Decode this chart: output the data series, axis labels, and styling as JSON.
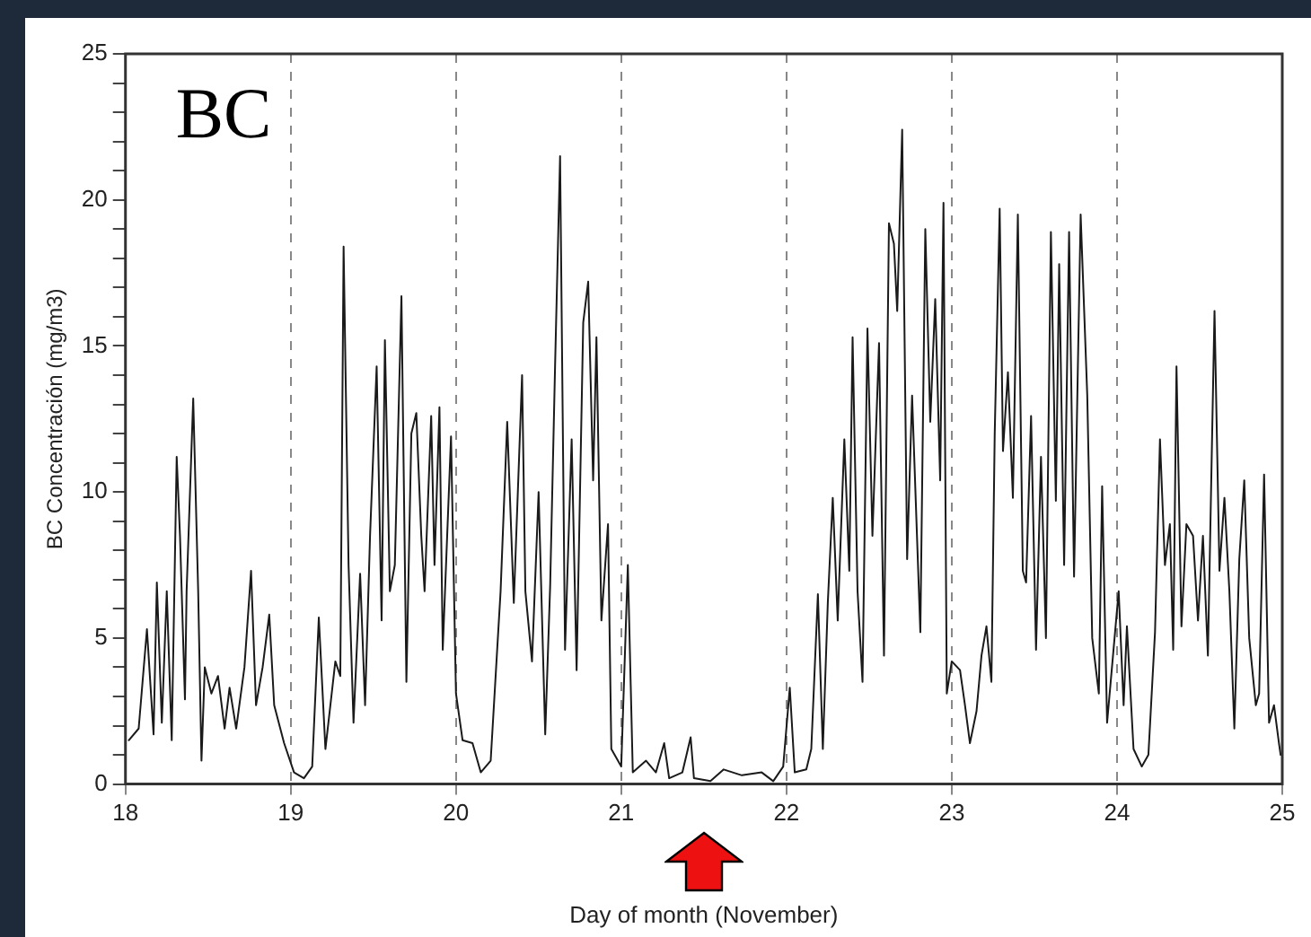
{
  "chart_data": {
    "type": "line",
    "xlabel": "Day of month (November)",
    "ylabel": "BC Concentración (mg/m3)",
    "annotations": [
      "BC"
    ],
    "x": [
      18.02,
      18.08,
      18.13,
      18.17,
      18.19,
      18.22,
      18.25,
      18.28,
      18.31,
      18.33,
      18.36,
      18.37,
      18.41,
      18.44,
      18.46,
      18.48,
      18.52,
      18.56,
      18.6,
      18.63,
      18.67,
      18.72,
      18.76,
      18.79,
      18.83,
      18.87,
      18.9,
      18.96,
      19.02,
      19.08,
      19.13,
      19.17,
      19.21,
      19.27,
      19.3,
      19.32,
      19.35,
      19.38,
      19.42,
      19.45,
      19.48,
      19.52,
      19.55,
      19.57,
      19.6,
      19.63,
      19.67,
      19.7,
      19.73,
      19.76,
      19.79,
      19.81,
      19.85,
      19.87,
      19.9,
      19.92,
      19.97,
      20.0,
      20.04,
      20.1,
      20.15,
      20.21,
      20.27,
      20.31,
      20.35,
      20.4,
      20.42,
      20.46,
      20.5,
      20.54,
      20.57,
      20.6,
      20.63,
      20.66,
      20.7,
      20.73,
      20.77,
      20.8,
      20.83,
      20.85,
      20.88,
      20.92,
      20.94,
      21.0,
      21.04,
      21.07,
      21.15,
      21.21,
      21.26,
      21.29,
      21.37,
      21.42,
      21.44,
      21.54,
      21.62,
      21.73,
      21.85,
      21.92,
      21.98,
      22.02,
      22.05,
      22.12,
      22.15,
      22.19,
      22.22,
      22.25,
      22.28,
      22.31,
      22.35,
      22.38,
      22.4,
      22.43,
      22.46,
      22.49,
      22.52,
      22.56,
      22.59,
      22.62,
      22.65,
      22.67,
      22.7,
      22.73,
      22.76,
      22.81,
      22.84,
      22.87,
      22.9,
      22.93,
      22.95,
      22.97,
      23.0,
      23.05,
      23.08,
      23.11,
      23.15,
      23.18,
      23.21,
      23.24,
      23.26,
      23.29,
      23.31,
      23.34,
      23.37,
      23.4,
      23.43,
      23.45,
      23.48,
      23.51,
      23.54,
      23.57,
      23.6,
      23.63,
      23.65,
      23.68,
      23.71,
      23.74,
      23.78,
      23.82,
      23.85,
      23.89,
      23.91,
      23.94,
      24.01,
      24.04,
      24.06,
      24.1,
      24.15,
      24.19,
      24.23,
      24.26,
      24.29,
      24.32,
      24.34,
      24.36,
      24.39,
      24.42,
      24.46,
      24.49,
      24.52,
      24.55,
      24.59,
      24.62,
      24.65,
      24.68,
      24.71,
      24.74,
      24.77,
      24.8,
      24.84,
      24.86,
      24.89,
      24.92,
      24.95,
      24.98,
      24.99
    ],
    "values": [
      1.5,
      1.9,
      5.3,
      1.7,
      6.9,
      2.1,
      6.6,
      1.5,
      11.2,
      8.5,
      2.9,
      6.6,
      13.2,
      6.6,
      0.8,
      4.0,
      3.1,
      3.7,
      1.9,
      3.3,
      1.9,
      4.0,
      7.3,
      2.7,
      4.0,
      5.8,
      2.7,
      1.4,
      0.4,
      0.2,
      0.6,
      5.7,
      1.2,
      4.2,
      3.7,
      18.4,
      7.5,
      2.1,
      7.2,
      2.7,
      8.5,
      14.3,
      5.6,
      15.2,
      6.6,
      7.5,
      16.7,
      3.5,
      12.0,
      12.7,
      8.5,
      6.6,
      12.6,
      7.5,
      12.9,
      4.6,
      11.9,
      3.1,
      1.5,
      1.4,
      0.4,
      0.8,
      6.6,
      12.4,
      6.2,
      14.0,
      6.6,
      4.2,
      10.0,
      1.7,
      6.8,
      14.4,
      21.5,
      4.6,
      11.8,
      3.9,
      15.8,
      17.2,
      10.4,
      15.3,
      5.6,
      8.9,
      1.2,
      0.6,
      7.5,
      0.4,
      0.8,
      0.4,
      1.4,
      0.2,
      0.4,
      1.6,
      0.2,
      0.1,
      0.5,
      0.3,
      0.4,
      0.1,
      0.6,
      3.3,
      0.4,
      0.5,
      1.2,
      6.5,
      1.2,
      6.2,
      9.8,
      5.6,
      11.8,
      7.3,
      15.3,
      6.6,
      3.5,
      15.6,
      8.5,
      15.1,
      4.4,
      19.2,
      18.5,
      16.2,
      22.4,
      7.7,
      13.3,
      5.2,
      19.0,
      12.4,
      16.6,
      10.4,
      19.9,
      3.1,
      4.2,
      3.9,
      2.7,
      1.4,
      2.5,
      4.4,
      5.4,
      3.5,
      12.0,
      19.7,
      11.4,
      14.1,
      9.8,
      19.5,
      7.3,
      6.9,
      12.6,
      4.6,
      11.2,
      5.0,
      18.9,
      9.7,
      17.8,
      7.5,
      18.9,
      7.1,
      19.5,
      13.3,
      5.0,
      3.1,
      10.2,
      2.1,
      6.6,
      2.7,
      5.4,
      1.2,
      0.6,
      1.0,
      5.2,
      11.8,
      7.5,
      8.9,
      4.6,
      14.3,
      5.4,
      8.9,
      8.5,
      5.6,
      8.5,
      4.4,
      16.2,
      7.3,
      9.8,
      6.6,
      1.9,
      7.7,
      10.4,
      5.0,
      2.7,
      3.1,
      10.6,
      2.1,
      2.7,
      1.4,
      1.0
    ],
    "color": "#1a1a1a",
    "xlim": [
      18,
      25
    ],
    "xticks": [
      18,
      19,
      20,
      21,
      22,
      23,
      24,
      25
    ],
    "ylim": [
      0,
      25
    ],
    "yticks": [
      0,
      {
        "value": 1,
        "label": null
      },
      {
        "value": 2,
        "label": null
      },
      {
        "value": 3,
        "label": null
      },
      {
        "value": 4,
        "label": null
      },
      5,
      {
        "value": 6,
        "label": null
      },
      {
        "value": 7,
        "label": null
      },
      {
        "value": 8,
        "label": null
      },
      {
        "value": 9,
        "label": null
      },
      10,
      {
        "value": 11,
        "label": null
      },
      {
        "value": 12,
        "label": null
      },
      {
        "value": 13,
        "label": null
      },
      {
        "value": 14,
        "label": null
      },
      15,
      {
        "value": 16,
        "label": null
      },
      {
        "value": 17,
        "label": null
      },
      {
        "value": 18,
        "label": null
      },
      {
        "value": 19,
        "label": null
      },
      20,
      {
        "value": 21,
        "label": null
      },
      {
        "value": 22,
        "label": null
      },
      {
        "value": 23,
        "label": null
      },
      {
        "value": 24,
        "label": null
      },
      25
    ],
    "grid": "x"
  }
}
